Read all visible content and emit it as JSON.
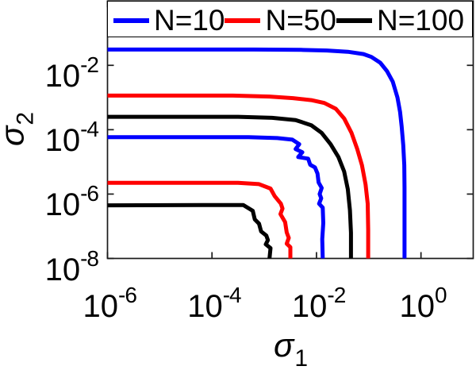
{
  "figure": {
    "background": "#ffffff",
    "axes_color": "#1a1a1a"
  },
  "chart_data": {
    "type": "line",
    "description": "Log-log contour curves in the (sigma1, sigma2) plane for three sample sizes; each N has an outer and an inner contour",
    "grid": false,
    "x_axis": {
      "label_symbol": "σ",
      "label_subscript": "1",
      "scale": "log10",
      "lim_log10": [
        -6,
        1
      ],
      "tick_base": "10",
      "tick_exponents": [
        -6,
        -4,
        -2,
        0
      ]
    },
    "y_axis": {
      "label_symbol": "σ",
      "label_subscript": "2",
      "scale": "log10",
      "lim_log10": [
        -8,
        0
      ],
      "tick_base": "10",
      "tick_exponents": [
        -2,
        -4,
        -6,
        -8
      ]
    },
    "legend": {
      "position": "top-inside",
      "items": [
        {
          "label": "N=10",
          "color": "#0000ff"
        },
        {
          "label": "N=50",
          "color": "#ff0000"
        },
        {
          "label": "N=100",
          "color": "#000000"
        }
      ]
    },
    "series": [
      {
        "name": "N=10 outer",
        "legend": "N=10",
        "color": "#0000ff",
        "line_width": 5,
        "points_log10": [
          [
            -6,
            -1.51
          ],
          [
            -3.2,
            -1.51
          ],
          [
            -2.3,
            -1.52
          ],
          [
            -1.8,
            -1.54
          ],
          [
            -1.4,
            -1.58
          ],
          [
            -1.1,
            -1.65
          ],
          [
            -0.95,
            -1.74
          ],
          [
            -0.78,
            -1.92
          ],
          [
            -0.65,
            -2.18
          ],
          [
            -0.54,
            -2.51
          ],
          [
            -0.45,
            -3.0
          ],
          [
            -0.4,
            -3.45
          ],
          [
            -0.37,
            -3.9
          ],
          [
            -0.34,
            -4.48
          ],
          [
            -0.32,
            -5.1
          ],
          [
            -0.315,
            -5.8
          ],
          [
            -0.315,
            -8
          ]
        ]
      },
      {
        "name": "N=10 inner",
        "legend": "N=10",
        "color": "#0000ff",
        "line_width": 5,
        "points_log10": [
          [
            -6,
            -4.23
          ],
          [
            -3.3,
            -4.23
          ],
          [
            -2.75,
            -4.26
          ],
          [
            -2.46,
            -4.31
          ],
          [
            -2.33,
            -4.45
          ],
          [
            -2.4,
            -4.6
          ],
          [
            -2.27,
            -4.7
          ],
          [
            -2.35,
            -4.85
          ],
          [
            -2.16,
            -4.9
          ],
          [
            -2.12,
            -5.09
          ],
          [
            -2.03,
            -5.17
          ],
          [
            -1.98,
            -5.36
          ],
          [
            -1.96,
            -5.64
          ],
          [
            -1.9,
            -5.81
          ],
          [
            -1.94,
            -6.0
          ],
          [
            -1.91,
            -6.13
          ],
          [
            -1.95,
            -6.3
          ],
          [
            -1.88,
            -6.42
          ],
          [
            -1.87,
            -6.9
          ],
          [
            -1.89,
            -7.4
          ],
          [
            -1.88,
            -8
          ]
        ]
      },
      {
        "name": "N=50 outer",
        "legend": "N=50",
        "color": "#ff0000",
        "line_width": 5,
        "points_log10": [
          [
            -6,
            -2.94
          ],
          [
            -3.6,
            -2.94
          ],
          [
            -2.9,
            -2.97
          ],
          [
            -2.45,
            -3.02
          ],
          [
            -2.1,
            -3.08
          ],
          [
            -1.85,
            -3.17
          ],
          [
            -1.63,
            -3.35
          ],
          [
            -1.47,
            -3.65
          ],
          [
            -1.33,
            -4.1
          ],
          [
            -1.22,
            -4.6
          ],
          [
            -1.13,
            -5.1
          ],
          [
            -1.06,
            -5.7
          ],
          [
            -1.02,
            -6.3
          ],
          [
            -1.01,
            -7.1
          ],
          [
            -1.01,
            -8
          ]
        ]
      },
      {
        "name": "N=50 inner",
        "legend": "N=50",
        "color": "#ff0000",
        "line_width": 5,
        "points_log10": [
          [
            -6,
            -5.65
          ],
          [
            -3.5,
            -5.65
          ],
          [
            -3.1,
            -5.69
          ],
          [
            -2.88,
            -5.83
          ],
          [
            -2.8,
            -6.06
          ],
          [
            -2.68,
            -6.3
          ],
          [
            -2.65,
            -6.45
          ],
          [
            -2.69,
            -6.62
          ],
          [
            -2.6,
            -6.87
          ],
          [
            -2.57,
            -7.19
          ],
          [
            -2.53,
            -7.36
          ],
          [
            -2.57,
            -7.54
          ],
          [
            -2.5,
            -7.65
          ],
          [
            -2.5,
            -8
          ]
        ]
      },
      {
        "name": "N=100 outer",
        "legend": "N=100",
        "color": "#000000",
        "line_width": 5,
        "points_log10": [
          [
            -6,
            -3.6
          ],
          [
            -3.5,
            -3.6
          ],
          [
            -2.85,
            -3.63
          ],
          [
            -2.4,
            -3.7
          ],
          [
            -2.1,
            -3.86
          ],
          [
            -1.9,
            -4.1
          ],
          [
            -1.73,
            -4.45
          ],
          [
            -1.58,
            -4.85
          ],
          [
            -1.47,
            -5.3
          ],
          [
            -1.4,
            -5.85
          ],
          [
            -1.36,
            -6.5
          ],
          [
            -1.34,
            -7.2
          ],
          [
            -1.34,
            -8
          ]
        ]
      },
      {
        "name": "N=100 inner",
        "legend": "N=100",
        "color": "#000000",
        "line_width": 5,
        "points_log10": [
          [
            -6,
            -6.35
          ],
          [
            -3.7,
            -6.34
          ],
          [
            -3.4,
            -6.34
          ],
          [
            -3.22,
            -6.52
          ],
          [
            -3.18,
            -6.79
          ],
          [
            -3.1,
            -6.92
          ],
          [
            -3.06,
            -7.16
          ],
          [
            -2.96,
            -7.29
          ],
          [
            -2.93,
            -7.43
          ],
          [
            -2.97,
            -7.56
          ],
          [
            -2.88,
            -7.68
          ],
          [
            -2.9,
            -8
          ]
        ]
      }
    ]
  }
}
